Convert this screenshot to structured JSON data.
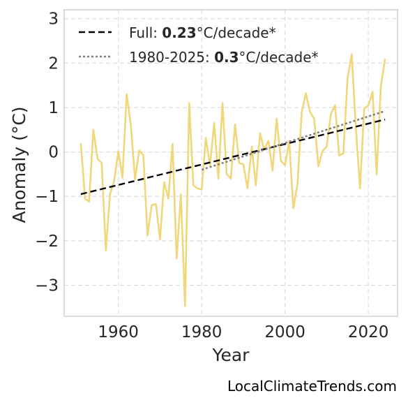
{
  "chart_data": {
    "type": "line",
    "xlabel": "Year",
    "ylabel": "Anomaly (°C)",
    "xlim": [
      1947,
      2027
    ],
    "ylim": [
      -3.7,
      3.2
    ],
    "xticks": [
      1960,
      1980,
      2000,
      2020
    ],
    "yticks": [
      -3,
      -2,
      -1,
      0,
      1,
      2,
      3
    ],
    "ytick_labels": [
      "−3",
      "−2",
      "−1",
      "0",
      "1",
      "2",
      "3"
    ],
    "grid": true,
    "legend_position": "top-left",
    "series": [
      {
        "kind": "anomaly",
        "color": "#f0d77a",
        "x": [
          1951,
          1952,
          1953,
          1954,
          1955,
          1956,
          1957,
          1958,
          1959,
          1960,
          1961,
          1962,
          1963,
          1964,
          1965,
          1966,
          1967,
          1968,
          1969,
          1970,
          1971,
          1972,
          1973,
          1974,
          1975,
          1976,
          1977,
          1978,
          1979,
          1980,
          1981,
          1982,
          1983,
          1984,
          1985,
          1986,
          1987,
          1988,
          1989,
          1990,
          1991,
          1992,
          1993,
          1994,
          1995,
          1996,
          1997,
          1998,
          1999,
          2000,
          2001,
          2002,
          2003,
          2004,
          2005,
          2006,
          2007,
          2008,
          2009,
          2010,
          2011,
          2012,
          2013,
          2014,
          2015,
          2016,
          2017,
          2018,
          2019,
          2020,
          2021,
          2022,
          2023,
          2024
        ],
        "y": [
          0.2,
          -1.05,
          -1.12,
          0.5,
          -0.15,
          -0.25,
          -2.22,
          -0.95,
          -0.65,
          0.02,
          -0.58,
          1.3,
          0.6,
          -0.62,
          0.03,
          -0.07,
          -1.88,
          -1.2,
          -1.17,
          -1.97,
          -0.68,
          -1.05,
          0.18,
          -2.4,
          -0.95,
          -3.47,
          1.1,
          -0.75,
          -0.82,
          -0.85,
          0.32,
          -0.3,
          0.65,
          -0.6,
          1.1,
          -0.5,
          -0.6,
          0.62,
          -0.25,
          -0.28,
          -0.82,
          0.12,
          -0.75,
          0.42,
          0.05,
          0.25,
          -0.42,
          0.75,
          -0.2,
          -0.3,
          0.25,
          -1.27,
          -0.72,
          0.9,
          1.32,
          0.9,
          0.75,
          -0.32,
          0.02,
          0.12,
          0.85,
          1.05,
          -0.08,
          -0.03,
          1.65,
          2.2,
          0.52,
          -0.82,
          0.98,
          1.05,
          1.35,
          -0.5,
          1.48,
          2.1
        ]
      },
      {
        "kind": "trend-full",
        "legend_prefix": "Full: ",
        "legend_value": "0.23",
        "legend_suffix": "°C/decade*",
        "color": "#000000",
        "x": [
          1951,
          2024
        ],
        "y": [
          -0.95,
          0.73
        ]
      },
      {
        "kind": "trend-recent",
        "legend_prefix": "1980-2025: ",
        "legend_value": "0.3",
        "legend_suffix": "°C/decade*",
        "color": "#808080",
        "x": [
          1980,
          2024
        ],
        "y": [
          -0.4,
          0.92
        ]
      }
    ]
  },
  "credit": "LocalClimateTrends.com"
}
